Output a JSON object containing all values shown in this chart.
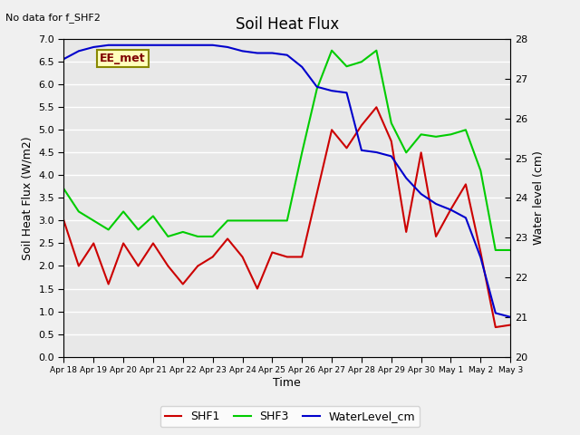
{
  "title": "Soil Heat Flux",
  "note": "No data for f_SHF2",
  "ylabel_left": "Soil Heat Flux (W/m2)",
  "ylabel_right": "Water level (cm)",
  "xlabel": "Time",
  "ylim_left": [
    0.0,
    7.0
  ],
  "ylim_right": [
    20.0,
    28.0
  ],
  "annotation": "EE_met",
  "plot_bg": "#e8e8e8",
  "fig_bg": "#f0f0f0",
  "grid_color": "#ffffff",
  "xtick_labels": [
    "Apr 18",
    "Apr 19",
    "Apr 20",
    "Apr 21",
    "Apr 22",
    "Apr 23",
    "Apr 24",
    "Apr 25",
    "Apr 26",
    "Apr 27",
    "Apr 28",
    "Apr 29",
    "Apr 30",
    "May 1",
    "May 2",
    "May 3"
  ],
  "shf1_x": [
    0,
    0.5,
    1,
    1.5,
    2,
    2.5,
    3,
    3.5,
    4,
    4.5,
    5,
    5.5,
    6,
    6.5,
    7,
    7.5,
    8,
    8.5,
    9,
    9.5,
    10,
    10.5,
    11,
    11.5,
    12,
    12.5,
    13,
    13.5,
    14,
    14.5,
    15
  ],
  "shf1_y": [
    3.0,
    2.0,
    2.5,
    1.6,
    2.5,
    2.0,
    2.5,
    2.0,
    1.6,
    2.0,
    2.2,
    2.6,
    2.2,
    1.5,
    2.3,
    2.2,
    2.2,
    3.6,
    5.0,
    4.6,
    5.1,
    5.5,
    4.75,
    2.75,
    4.5,
    2.65,
    3.25,
    3.8,
    2.3,
    0.65,
    0.7
  ],
  "shf3_x": [
    0,
    0.5,
    1,
    1.5,
    2,
    2.5,
    3,
    3.5,
    4,
    4.5,
    5,
    5.5,
    6,
    6.5,
    7,
    7.5,
    8,
    8.5,
    9,
    9.5,
    10,
    10.5,
    11,
    11.5,
    12,
    12.5,
    13,
    13.5,
    14,
    14.5,
    15
  ],
  "shf3_y": [
    3.7,
    3.2,
    3.0,
    2.8,
    3.2,
    2.8,
    3.1,
    2.65,
    2.75,
    2.65,
    2.65,
    3.0,
    3.0,
    3.0,
    3.0,
    3.0,
    4.5,
    5.9,
    6.75,
    6.4,
    6.5,
    6.75,
    5.15,
    4.5,
    4.9,
    4.85,
    4.9,
    5.0,
    4.1,
    2.35,
    2.35
  ],
  "water_x": [
    0,
    0.5,
    1,
    1.5,
    2,
    2.5,
    3,
    3.5,
    4,
    4.5,
    5,
    5.5,
    6,
    6.5,
    7,
    7.5,
    8,
    8.5,
    9,
    9.5,
    10,
    10.5,
    11,
    11.5,
    12,
    12.5,
    13,
    13.5,
    14,
    14.5,
    15
  ],
  "water_y": [
    27.5,
    27.7,
    27.8,
    27.85,
    27.85,
    27.85,
    27.85,
    27.85,
    27.85,
    27.85,
    27.85,
    27.8,
    27.7,
    27.65,
    27.65,
    27.6,
    27.3,
    26.8,
    26.7,
    26.65,
    25.2,
    25.15,
    25.05,
    24.5,
    24.1,
    23.85,
    23.7,
    23.5,
    22.5,
    21.1,
    21.0
  ],
  "color_shf1": "#cc0000",
  "color_shf3": "#00cc00",
  "color_water": "#0000cc",
  "linewidth": 1.5
}
